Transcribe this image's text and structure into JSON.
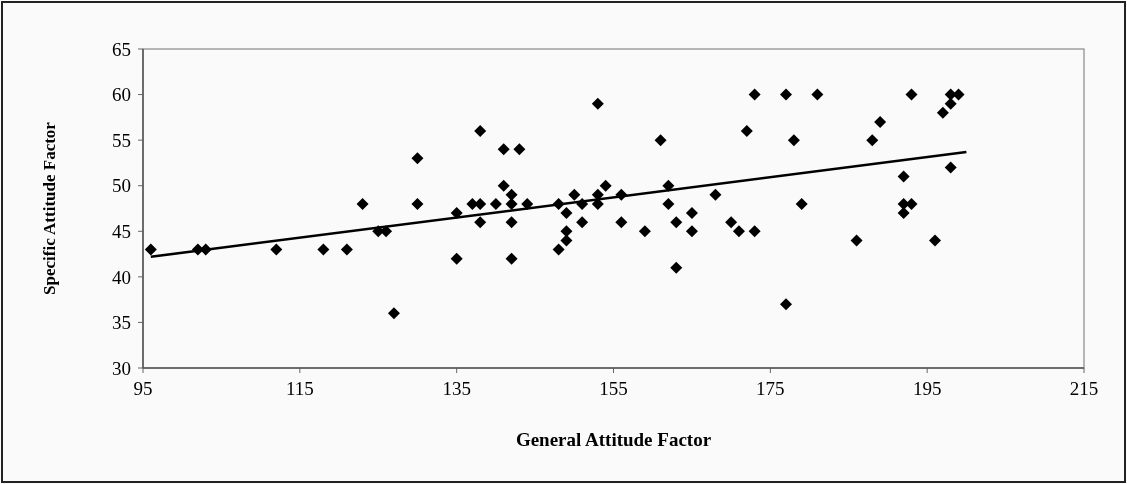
{
  "chart_data": {
    "type": "scatter",
    "xlabel": "General Attitude Factor",
    "ylabel": "Specific Attitude Factor",
    "xlim": [
      95,
      215
    ],
    "ylim": [
      30,
      65
    ],
    "xticks": [
      95,
      115,
      135,
      155,
      175,
      195,
      215
    ],
    "yticks": [
      30,
      35,
      40,
      45,
      50,
      55,
      60,
      65
    ],
    "series": [
      {
        "marker": "diamond",
        "color": "#000000",
        "x": [
          96,
          102,
          103,
          112,
          118,
          121,
          123,
          125,
          126,
          127,
          130,
          130,
          135,
          135,
          137,
          138,
          138,
          138,
          140,
          141,
          143,
          141,
          142,
          142,
          142,
          142,
          144,
          148,
          149,
          149,
          149,
          148,
          150,
          151,
          151,
          153,
          153,
          153,
          154,
          156,
          156,
          159,
          161,
          162,
          162,
          163,
          163,
          165,
          165,
          168,
          170,
          171,
          173,
          172,
          173,
          177,
          177,
          181,
          178,
          179,
          186,
          188,
          189,
          192,
          192,
          193,
          192,
          193,
          196,
          197,
          198,
          198,
          199,
          198
        ],
        "values": [
          43,
          43,
          43,
          43,
          43,
          43,
          48,
          45,
          45,
          36,
          53,
          48,
          47,
          42,
          48,
          48,
          56,
          46,
          48,
          54,
          54,
          50,
          49,
          48,
          46,
          42,
          48,
          48,
          47,
          45,
          44,
          43,
          49,
          48,
          46,
          49,
          48,
          59,
          50,
          49,
          46,
          45,
          55,
          50,
          48,
          46,
          41,
          47,
          45,
          49,
          46,
          45,
          45,
          56,
          60,
          60,
          37,
          60,
          55,
          48,
          44,
          55,
          57,
          51,
          48,
          48,
          47,
          60,
          44,
          58,
          59,
          60,
          60,
          52
        ]
      },
      {
        "type": "line",
        "color": "#000000",
        "x": [
          96,
          200
        ],
        "values": [
          42.2,
          53.7
        ]
      }
    ]
  }
}
